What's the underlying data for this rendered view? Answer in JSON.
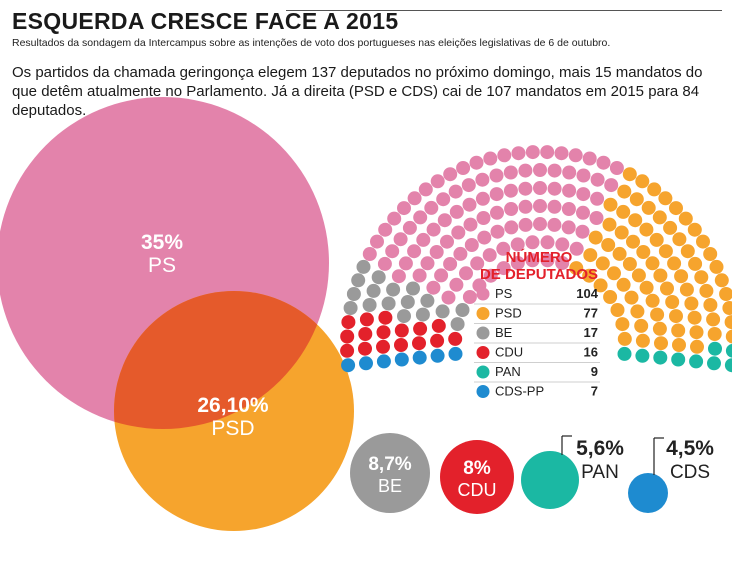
{
  "header": {
    "title": "ESQUERDA CRESCE FACE A 2015",
    "subtitle": "Resultados da sondagem da Intercampus sobre as intenções de voto dos portugueses nas eleições legislativas de 6 de outubro.",
    "lede": "Os partidos da chamada geringonça elegem 137 deputados no próximo domingo, mais 15 mandatos do que detêm atualmente no Parlamento. Já a direita (PSD e CDS) cai de 107 mandatos em 2015 para 84 deputados."
  },
  "colors": {
    "PS": "#e383ab",
    "PSD": "#f6a42d",
    "BE": "#9a9a9a",
    "CDU": "#e3212b",
    "PAN": "#1bb8a3",
    "CDS": "#1e8bd0",
    "overlap": "#e55a2b",
    "empty": "#e3e3e3"
  },
  "chart_data": [
    {
      "type": "bubble",
      "series": [
        {
          "name": "PS",
          "pct_label": "35%",
          "name_label": "PS",
          "value": 35.0
        },
        {
          "name": "PSD",
          "pct_label": "26,10%",
          "name_label": "PSD",
          "value": 26.1
        },
        {
          "name": "BE",
          "pct_label": "8,7%",
          "name_label": "BE",
          "value": 8.7
        },
        {
          "name": "CDU",
          "pct_label": "8%",
          "name_label": "CDU",
          "value": 8.0
        },
        {
          "name": "PAN",
          "pct_label": "5,6%",
          "name_label": "PAN",
          "value": 5.6
        },
        {
          "name": "CDS",
          "pct_label": "4,5%",
          "name_label": "CDS",
          "value": 4.5
        }
      ]
    },
    {
      "type": "parliament",
      "legend_title_1": "NÚMERO",
      "legend_title_2": "DE DEPUTADOS",
      "parties": [
        {
          "name": "PS",
          "seats": 104
        },
        {
          "name": "PSD",
          "seats": 77
        },
        {
          "name": "BE",
          "seats": 17
        },
        {
          "name": "CDU",
          "seats": 16
        },
        {
          "name": "PAN",
          "seats": 9
        },
        {
          "name": "CDS-PP",
          "seats": 7
        }
      ]
    }
  ]
}
